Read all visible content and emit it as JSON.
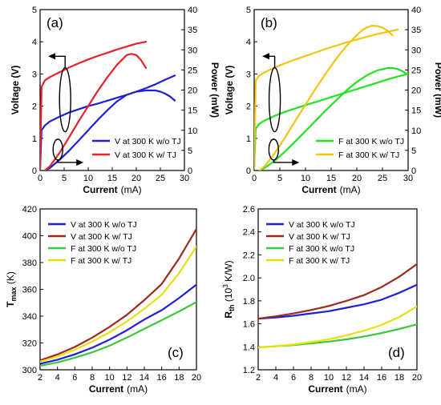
{
  "chart_data": [
    {
      "type": "line",
      "panel_label": "(a)",
      "xlabel": "Current",
      "xlabel_unit": "(mA)",
      "ylabel": "Voltage (V)",
      "y2label": "Power (mW)",
      "xlim": [
        0,
        30
      ],
      "ylim": [
        0,
        5
      ],
      "y2lim": [
        0,
        40
      ],
      "xticks": [
        "0",
        "5",
        "10",
        "15",
        "20",
        "25",
        "30"
      ],
      "yticks": [
        "0",
        "1",
        "2",
        "3",
        "4",
        "5"
      ],
      "y2ticks": [
        "0",
        "5",
        "10",
        "15",
        "20",
        "25",
        "30",
        "35",
        "40"
      ],
      "legend_position": "bottom-right",
      "legend": [
        {
          "label": "V at 300 K w/o TJ",
          "color": "#1f1fd6"
        },
        {
          "label": "V at 300 K w/ TJ",
          "color": "#e8202a"
        }
      ],
      "series": [
        {
          "label": "V at 300 K w/o TJ",
          "quantity": "voltage",
          "axis": "left",
          "color": "#1f1fd6",
          "x": [
            0,
            0.3,
            1,
            2,
            4,
            6,
            8,
            10,
            12,
            14,
            16,
            18,
            20,
            22,
            24,
            26,
            28
          ],
          "y": [
            0.05,
            1.25,
            1.4,
            1.52,
            1.67,
            1.8,
            1.9,
            2.0,
            2.08,
            2.17,
            2.26,
            2.35,
            2.45,
            2.56,
            2.68,
            2.82,
            2.95
          ]
        },
        {
          "label": "V at 300 K w/ TJ",
          "quantity": "voltage",
          "axis": "left",
          "color": "#e8202a",
          "x": [
            0,
            0.3,
            1,
            2,
            4,
            6,
            8,
            10,
            12,
            14,
            16,
            18,
            20,
            22
          ],
          "y": [
            0.05,
            2.6,
            2.8,
            2.9,
            3.05,
            3.2,
            3.33,
            3.45,
            3.56,
            3.66,
            3.76,
            3.85,
            3.94,
            4.0
          ]
        },
        {
          "label": "V at 300 K w/o TJ",
          "quantity": "power",
          "axis": "right",
          "color": "#1f1fd6",
          "x": [
            1,
            2,
            4,
            6,
            8,
            10,
            12,
            14,
            16,
            18,
            20,
            22,
            24,
            25,
            26,
            27,
            28
          ],
          "y": [
            0,
            0.6,
            2.6,
            4.9,
            7.4,
            10.0,
            12.6,
            15.0,
            17.2,
            18.8,
            19.6,
            19.9,
            19.9,
            19.6,
            19.1,
            18.4,
            17.4
          ]
        },
        {
          "label": "V at 300 K w/ TJ",
          "quantity": "power",
          "axis": "right",
          "color": "#e8202a",
          "x": [
            1,
            2,
            4,
            6,
            8,
            10,
            12,
            14,
            16,
            18,
            19,
            20,
            21,
            22
          ],
          "y": [
            0,
            1.0,
            4.3,
            8.2,
            12.2,
            16.0,
            19.8,
            23.2,
            26.3,
            28.7,
            29.0,
            28.7,
            27.4,
            25.5
          ]
        }
      ]
    },
    {
      "type": "line",
      "panel_label": "(b)",
      "xlabel": "Current",
      "xlabel_unit": "(mA)",
      "ylabel": "Voltage (V)",
      "y2label": "Power (mW)",
      "xlim": [
        0,
        30
      ],
      "ylim": [
        0,
        5
      ],
      "y2lim": [
        0,
        40
      ],
      "xticks": [
        "0",
        "5",
        "10",
        "15",
        "20",
        "25",
        "30"
      ],
      "yticks": [
        "0",
        "1",
        "2",
        "3",
        "4",
        "5"
      ],
      "y2ticks": [
        "0",
        "5",
        "10",
        "15",
        "20",
        "25",
        "30",
        "35",
        "40"
      ],
      "legend_position": "bottom-right",
      "legend": [
        {
          "label": "F at 300 K w/o TJ",
          "color": "#22e222"
        },
        {
          "label": "F at 300 K w/ TJ",
          "color": "#f2c40f"
        }
      ],
      "series": [
        {
          "label": "F at 300 K w/o TJ",
          "quantity": "voltage",
          "axis": "left",
          "color": "#22e222",
          "x": [
            0,
            0.3,
            1,
            2,
            4,
            6,
            8,
            10,
            12,
            14,
            16,
            18,
            20,
            22,
            24,
            26,
            28,
            30
          ],
          "y": [
            0.05,
            1.3,
            1.45,
            1.55,
            1.7,
            1.82,
            1.93,
            2.03,
            2.13,
            2.23,
            2.33,
            2.43,
            2.53,
            2.63,
            2.73,
            2.83,
            2.92,
            3.0
          ]
        },
        {
          "label": "F at 300 K w/ TJ",
          "quantity": "voltage",
          "axis": "left",
          "color": "#f2c40f",
          "x": [
            0,
            0.3,
            1,
            2,
            4,
            6,
            8,
            10,
            12,
            14,
            16,
            18,
            20,
            22,
            24,
            26,
            28
          ],
          "y": [
            0.05,
            2.8,
            2.95,
            3.05,
            3.2,
            3.33,
            3.45,
            3.56,
            3.67,
            3.78,
            3.88,
            3.98,
            4.07,
            4.16,
            4.24,
            4.31,
            4.38
          ]
        },
        {
          "label": "F at 300 K w/o TJ",
          "quantity": "power",
          "axis": "right",
          "color": "#22e222",
          "x": [
            1,
            2,
            4,
            6,
            8,
            10,
            12,
            14,
            16,
            18,
            20,
            22,
            24,
            26,
            27,
            28,
            29,
            30
          ],
          "y": [
            0,
            0.6,
            2.4,
            4.7,
            7.2,
            9.8,
            12.4,
            15.0,
            17.5,
            19.9,
            22.0,
            23.7,
            24.9,
            25.5,
            25.5,
            25.2,
            24.6,
            23.8
          ]
        },
        {
          "label": "F at 300 K w/ TJ",
          "quantity": "power",
          "axis": "right",
          "color": "#f2c40f",
          "x": [
            1,
            2,
            4,
            6,
            8,
            10,
            12,
            14,
            16,
            18,
            20,
            21,
            22,
            23,
            24,
            25,
            26,
            27
          ],
          "y": [
            0,
            1.0,
            4.3,
            8.2,
            12.3,
            16.4,
            20.4,
            24.2,
            27.8,
            31.0,
            33.7,
            34.8,
            35.6,
            36.0,
            35.9,
            35.5,
            34.7,
            33.6
          ]
        }
      ]
    },
    {
      "type": "line",
      "panel_label": "(c)",
      "xlabel": "Current",
      "xlabel_unit": "(mA)",
      "ylabel_main": "T",
      "ylabel_sub": "max",
      "ylabel_unit": " (K)",
      "xlim": [
        2,
        20
      ],
      "ylim": [
        300,
        420
      ],
      "xticks": [
        "2",
        "4",
        "6",
        "8",
        "10",
        "12",
        "14",
        "16",
        "18",
        "20"
      ],
      "yticks": [
        "300",
        "320",
        "340",
        "360",
        "380",
        "400",
        "420"
      ],
      "legend_position": "top-left",
      "legend": [
        {
          "label": "V at 300 K w/o TJ",
          "color": "#1f1fd6"
        },
        {
          "label": "V at 300 K w/ TJ",
          "color": "#9c2a1e"
        },
        {
          "label": "F at 300 K w/o TJ",
          "color": "#3cc83c"
        },
        {
          "label": "F at 300 K w/ TJ",
          "color": "#e6e00f"
        }
      ],
      "series": [
        {
          "label": "V at 300 K w/o TJ",
          "color": "#1f1fd6",
          "x": [
            2,
            4,
            6,
            8,
            10,
            12,
            14,
            16,
            18,
            20
          ],
          "y": [
            304.5,
            307.5,
            311.5,
            316.5,
            322.5,
            329.5,
            337.5,
            344.5,
            353.5,
            363.5
          ]
        },
        {
          "label": "V at 300 K w/ TJ",
          "color": "#9c2a1e",
          "x": [
            2,
            4,
            6,
            8,
            10,
            12,
            14,
            16,
            18,
            20
          ],
          "y": [
            307,
            311.5,
            317,
            324,
            332,
            341,
            352,
            364,
            383,
            405
          ]
        },
        {
          "label": "F at 300 K w/o TJ",
          "color": "#3cc83c",
          "x": [
            2,
            4,
            6,
            8,
            10,
            12,
            14,
            16,
            18,
            20
          ],
          "y": [
            303,
            305.5,
            309,
            313,
            318,
            324,
            330.5,
            337,
            343.5,
            350.5
          ]
        },
        {
          "label": "F at 300 K w/ TJ",
          "color": "#e6e00f",
          "x": [
            2,
            4,
            6,
            8,
            10,
            12,
            14,
            16,
            18,
            20
          ],
          "y": [
            306,
            310,
            315,
            321,
            328,
            336,
            345.5,
            356,
            372,
            392
          ]
        }
      ]
    },
    {
      "type": "line",
      "panel_label": "(d)",
      "xlabel": "Current",
      "xlabel_unit": "(mA)",
      "ylabel_main": "R",
      "ylabel_sub": "th",
      "ylabel_unit": " (10",
      "ylabel_sup": "3",
      "ylabel_unit2": " K/W)",
      "xlim": [
        2,
        20
      ],
      "ylim": [
        1.2,
        2.6
      ],
      "xticks": [
        "2",
        "4",
        "6",
        "8",
        "10",
        "12",
        "14",
        "16",
        "18",
        "20"
      ],
      "yticks": [
        "1.2",
        "1.4",
        "1.6",
        "1.8",
        "2.0",
        "2.2",
        "2.4",
        "2.6"
      ],
      "legend_position": "top-left",
      "legend": [
        {
          "label": "V at 300 K w/o TJ",
          "color": "#1f1fd6"
        },
        {
          "label": "V at 300 K w/ TJ",
          "color": "#9c2a1e"
        },
        {
          "label": "F at 300 K w/o TJ",
          "color": "#3cc83c"
        },
        {
          "label": "F at 300 K w/ TJ",
          "color": "#e6e00f"
        }
      ],
      "series": [
        {
          "label": "V at 300 K w/o TJ",
          "color": "#1f1fd6",
          "x": [
            2,
            4,
            6,
            8,
            10,
            12,
            14,
            16,
            18,
            20
          ],
          "y": [
            1.645,
            1.655,
            1.67,
            1.69,
            1.71,
            1.74,
            1.77,
            1.81,
            1.87,
            1.94
          ]
        },
        {
          "label": "V at 300 K w/ TJ",
          "color": "#9c2a1e",
          "x": [
            2,
            4,
            6,
            8,
            10,
            12,
            14,
            16,
            18,
            20
          ],
          "y": [
            1.645,
            1.665,
            1.69,
            1.72,
            1.755,
            1.8,
            1.85,
            1.92,
            2.01,
            2.12
          ]
        },
        {
          "label": "F at 300 K w/o TJ",
          "color": "#3cc83c",
          "x": [
            2,
            4,
            6,
            8,
            10,
            12,
            14,
            16,
            18,
            20
          ],
          "y": [
            1.395,
            1.405,
            1.415,
            1.43,
            1.445,
            1.465,
            1.49,
            1.52,
            1.555,
            1.595
          ]
        },
        {
          "label": "F at 300 K w/ TJ",
          "color": "#e6e00f",
          "x": [
            2,
            4,
            6,
            8,
            10,
            12,
            14,
            16,
            18,
            20
          ],
          "y": [
            1.395,
            1.405,
            1.42,
            1.44,
            1.465,
            1.5,
            1.54,
            1.59,
            1.66,
            1.75
          ]
        }
      ]
    }
  ]
}
